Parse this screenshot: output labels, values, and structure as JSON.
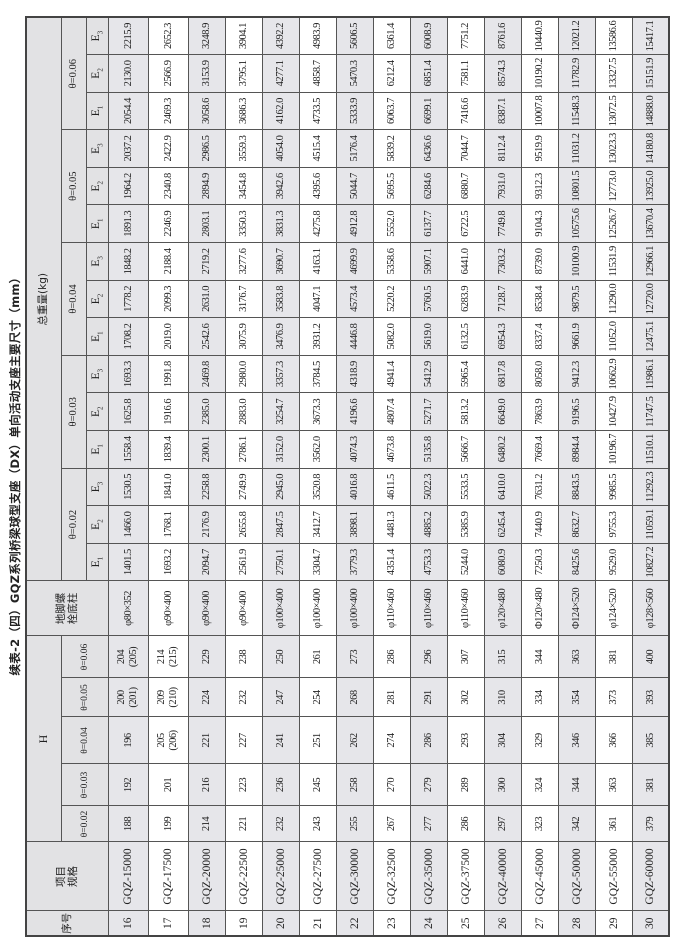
{
  "title": "续表-2（四）GQZ系列桥梁球型支座（DX）单向活动支座主要尺寸（mm）",
  "header": {
    "no": "序号",
    "spec_line1": "项目",
    "spec_line2": "规格",
    "h": "H",
    "h_thetas": [
      "θ=0.02",
      "θ=0.03",
      "θ=0.04",
      "θ=0.05",
      "θ=0.06"
    ],
    "bolt_line1": "地脚螺",
    "bolt_line2": "栓底柱",
    "weight": "总重量(kg)",
    "weight_thetas": [
      "θ=0.02",
      "θ=0.03",
      "θ=0.04",
      "θ=0.05",
      "θ=0.06"
    ],
    "e_labels": [
      "E",
      "E",
      "E"
    ],
    "e_subs": [
      "1",
      "2",
      "3"
    ]
  },
  "rows": [
    {
      "no": "16",
      "spec": "GQZ-15000",
      "h": [
        "188",
        "192",
        "196",
        "200 (201)",
        "204 (205)"
      ],
      "bolt": "φ80×352",
      "w": [
        "1401.5",
        "1466.0",
        "1530.5",
        "1558.4",
        "1625.8",
        "1693.3",
        "1708.2",
        "1778.2",
        "1848.2",
        "1891.3",
        "1964.2",
        "2037.2",
        "2054.4",
        "2130.0",
        "2215.9"
      ]
    },
    {
      "no": "17",
      "spec": "GQZ-17500",
      "h": [
        "199",
        "201",
        "205 (206)",
        "209 (210)",
        "214 (215)"
      ],
      "bolt": "φ90×400",
      "w": [
        "1693.2",
        "1768.1",
        "1841.0",
        "1839.4",
        "1916.6",
        "1991.8",
        "2019.0",
        "2099.3",
        "2188.4",
        "2246.9",
        "2340.8",
        "2422.9",
        "2469.3",
        "2566.9",
        "2652.3"
      ]
    },
    {
      "no": "18",
      "spec": "GQZ-20000",
      "h": [
        "214",
        "216",
        "221",
        "224",
        "229"
      ],
      "bolt": "φ90×400",
      "w": [
        "2094.7",
        "2176.9",
        "2258.8",
        "2300.1",
        "2385.0",
        "2469.8",
        "2542.6",
        "2631.0",
        "2719.2",
        "2803.1",
        "2894.9",
        "2986.5",
        "3058.6",
        "3153.9",
        "3248.9"
      ]
    },
    {
      "no": "19",
      "spec": "GQZ-22500",
      "h": [
        "221",
        "223",
        "227",
        "232",
        "238"
      ],
      "bolt": "φ90×400",
      "w": [
        "2561.9",
        "2655.8",
        "2749.9",
        "2786.1",
        "2883.0",
        "2980.0",
        "3075.9",
        "3176.7",
        "3277.6",
        "3350.3",
        "3454.8",
        "3559.3",
        "3686.3",
        "3795.1",
        "3904.1"
      ]
    },
    {
      "no": "20",
      "spec": "GQZ-25000",
      "h": [
        "232",
        "236",
        "241",
        "247",
        "250"
      ],
      "bolt": "φ100×400",
      "w": [
        "2750.1",
        "2847.5",
        "2945.0",
        "3152.0",
        "3254.7",
        "3357.3",
        "3476.9",
        "3583.8",
        "3690.7",
        "3831.3",
        "3942.6",
        "4054.0",
        "4162.0",
        "4277.1",
        "4392.2"
      ]
    },
    {
      "no": "21",
      "spec": "GQZ-27500",
      "h": [
        "243",
        "245",
        "251",
        "254",
        "261"
      ],
      "bolt": "φ100×400",
      "w": [
        "3304.7",
        "3412.7",
        "3520.8",
        "3562.0",
        "3673.3",
        "3784.5",
        "3931.2",
        "4047.1",
        "4163.1",
        "4275.8",
        "4395.6",
        "4515.4",
        "4733.5",
        "4858.7",
        "4983.9"
      ]
    },
    {
      "no": "22",
      "spec": "GQZ-30000",
      "h": [
        "255",
        "258",
        "262",
        "268",
        "273"
      ],
      "bolt": "φ100×400",
      "w": [
        "3779.3",
        "3898.1",
        "4016.8",
        "4074.3",
        "4196.6",
        "4318.9",
        "4446.8",
        "4573.4",
        "4699.9",
        "4912.8",
        "5044.7",
        "5176.4",
        "5333.9",
        "5470.3",
        "5606.5"
      ]
    },
    {
      "no": "23",
      "spec": "GQZ-32500",
      "h": [
        "267",
        "270",
        "274",
        "281",
        "286"
      ],
      "bolt": "φ110×460",
      "w": [
        "4351.4",
        "4481.3",
        "4611.5",
        "4673.8",
        "4807.4",
        "4941.4",
        "5082.0",
        "5220.2",
        "5358.6",
        "5552.0",
        "5695.5",
        "5839.2",
        "6063.7",
        "6212.4",
        "6361.4"
      ]
    },
    {
      "no": "24",
      "spec": "GQZ-35000",
      "h": [
        "277",
        "279",
        "286",
        "291",
        "296"
      ],
      "bolt": "φ110×460",
      "w": [
        "4753.3",
        "4885.2",
        "5022.3",
        "5135.8",
        "5271.7",
        "5412.9",
        "5619.0",
        "5760.5",
        "5907.1",
        "6137.7",
        "6284.6",
        "6436.6",
        "6699.1",
        "6851.4",
        "6008.9"
      ]
    },
    {
      "no": "25",
      "spec": "GQZ-37500",
      "h": [
        "286",
        "289",
        "293",
        "302",
        "307"
      ],
      "bolt": "φ110×460",
      "w": [
        "5244.0",
        "5385.9",
        "5533.5",
        "5666.7",
        "5813.2",
        "5965.4",
        "6132.5",
        "6283.9",
        "6441.0",
        "6722.5",
        "6880.7",
        "7044.7",
        "7416.6",
        "7581.1",
        "7751.2"
      ]
    },
    {
      "no": "26",
      "spec": "GQZ-40000",
      "h": [
        "297",
        "300",
        "304",
        "310",
        "315"
      ],
      "bolt": "φ120×480",
      "w": [
        "6080.9",
        "6245.4",
        "6410.0",
        "6480.2",
        "6649.0",
        "6817.8",
        "6954.3",
        "7128.7",
        "7303.2",
        "7749.8",
        "7931.0",
        "8112.4",
        "8387.1",
        "8574.3",
        "8761.6"
      ]
    },
    {
      "no": "27",
      "spec": "GQZ-45000",
      "h": [
        "323",
        "324",
        "329",
        "334",
        "344"
      ],
      "bolt": "Φ120×480",
      "w": [
        "7250.3",
        "7440.9",
        "7631.2",
        "7669.4",
        "7863.9",
        "8058.0",
        "8337.4",
        "8538.4",
        "8739.0",
        "9104.3",
        "9312.3",
        "9519.9",
        "10007.8",
        "10190.2",
        "10440.9"
      ]
    },
    {
      "no": "28",
      "spec": "GQZ-50000",
      "h": [
        "342",
        "344",
        "346",
        "354",
        "363"
      ],
      "bolt": "Φ124×520",
      "w": [
        "8425.6",
        "8632.7",
        "8843.5",
        "8984.4",
        "9196.5",
        "9412.3",
        "9661.9",
        "9879.5",
        "10100.9",
        "10575.6",
        "10801.5",
        "11031.2",
        "11548.3",
        "11782.9",
        "12021.2"
      ]
    },
    {
      "no": "29",
      "spec": "GQZ-55000",
      "h": [
        "361",
        "363",
        "366",
        "373",
        "381"
      ],
      "bolt": "φ124×520",
      "w": [
        "9529.0",
        "9755.3",
        "9985.5",
        "10196.7",
        "10427.9",
        "10662.9",
        "11052.0",
        "11290.0",
        "11531.9",
        "12526.7",
        "12773.0",
        "13023.3",
        "13072.5",
        "13327.5",
        "13586.6"
      ]
    },
    {
      "no": "30",
      "spec": "GQZ-60000",
      "h": [
        "379",
        "381",
        "385",
        "393",
        "400"
      ],
      "bolt": "φ128×560",
      "w": [
        "10827.2",
        "11059.1",
        "11292.3",
        "11510.1",
        "11747.5",
        "11986.1",
        "12475.1",
        "12720.0",
        "12966.1",
        "13670.4",
        "13925.0",
        "14180.8",
        "14888.0",
        "15151.9",
        "15417.1"
      ]
    }
  ]
}
